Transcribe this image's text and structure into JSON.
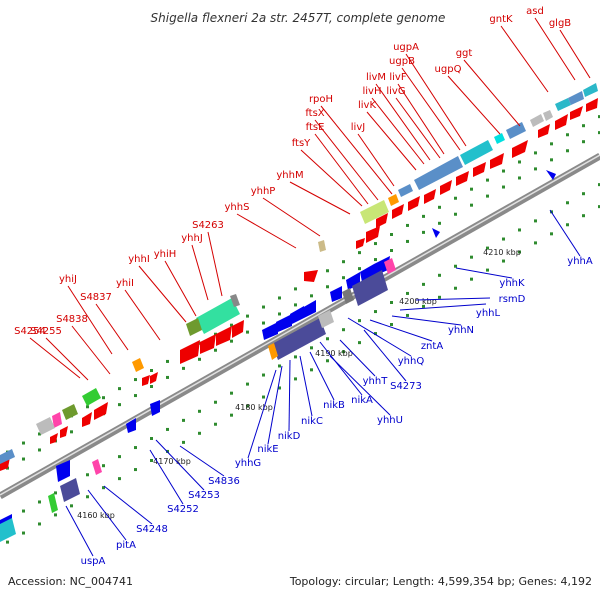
{
  "title": "Shigella flexneri 2a str. 2457T, complete genome",
  "footer": {
    "accession": "Accession: NC_004741",
    "summary": "Topology: circular; Length: 4,599,354 bp; Genes: 4,192"
  },
  "colors": {
    "forward_labels": "#d40000",
    "reverse_labels": "#0000cc",
    "backbone": "#888888",
    "tick": "#2e8b2e"
  },
  "ticks": [
    "4160 kbp",
    "4170 kbp",
    "4180 kbp",
    "4190 kbp",
    "4200 kbp",
    "4210 kbp"
  ],
  "forward_genes": [
    "gntK",
    "asd",
    "glgB",
    "ggt",
    "ugpA",
    "ugpB",
    "ugpQ",
    "livM",
    "livF",
    "livH",
    "livG",
    "livK",
    "livJ",
    "rpoH",
    "ftsX",
    "ftsE",
    "ftsY",
    "yhhM",
    "yhhP",
    "yhhS",
    "S4263",
    "yhhJ",
    "yhhI",
    "yhiH",
    "yhiI",
    "yhiJ",
    "S4837",
    "S4838",
    "S4255",
    "S4254"
  ],
  "reverse_genes": [
    "yhhA",
    "yhhK",
    "rsmD",
    "yhhL",
    "yhhN",
    "zntA",
    "yhhQ",
    "S4273",
    "yhhT",
    "nikA",
    "yhhU",
    "nikB",
    "nikC",
    "nikD",
    "nikE",
    "yhhG",
    "S4836",
    "S4253",
    "S4252",
    "S4248",
    "pitA",
    "uspA"
  ]
}
